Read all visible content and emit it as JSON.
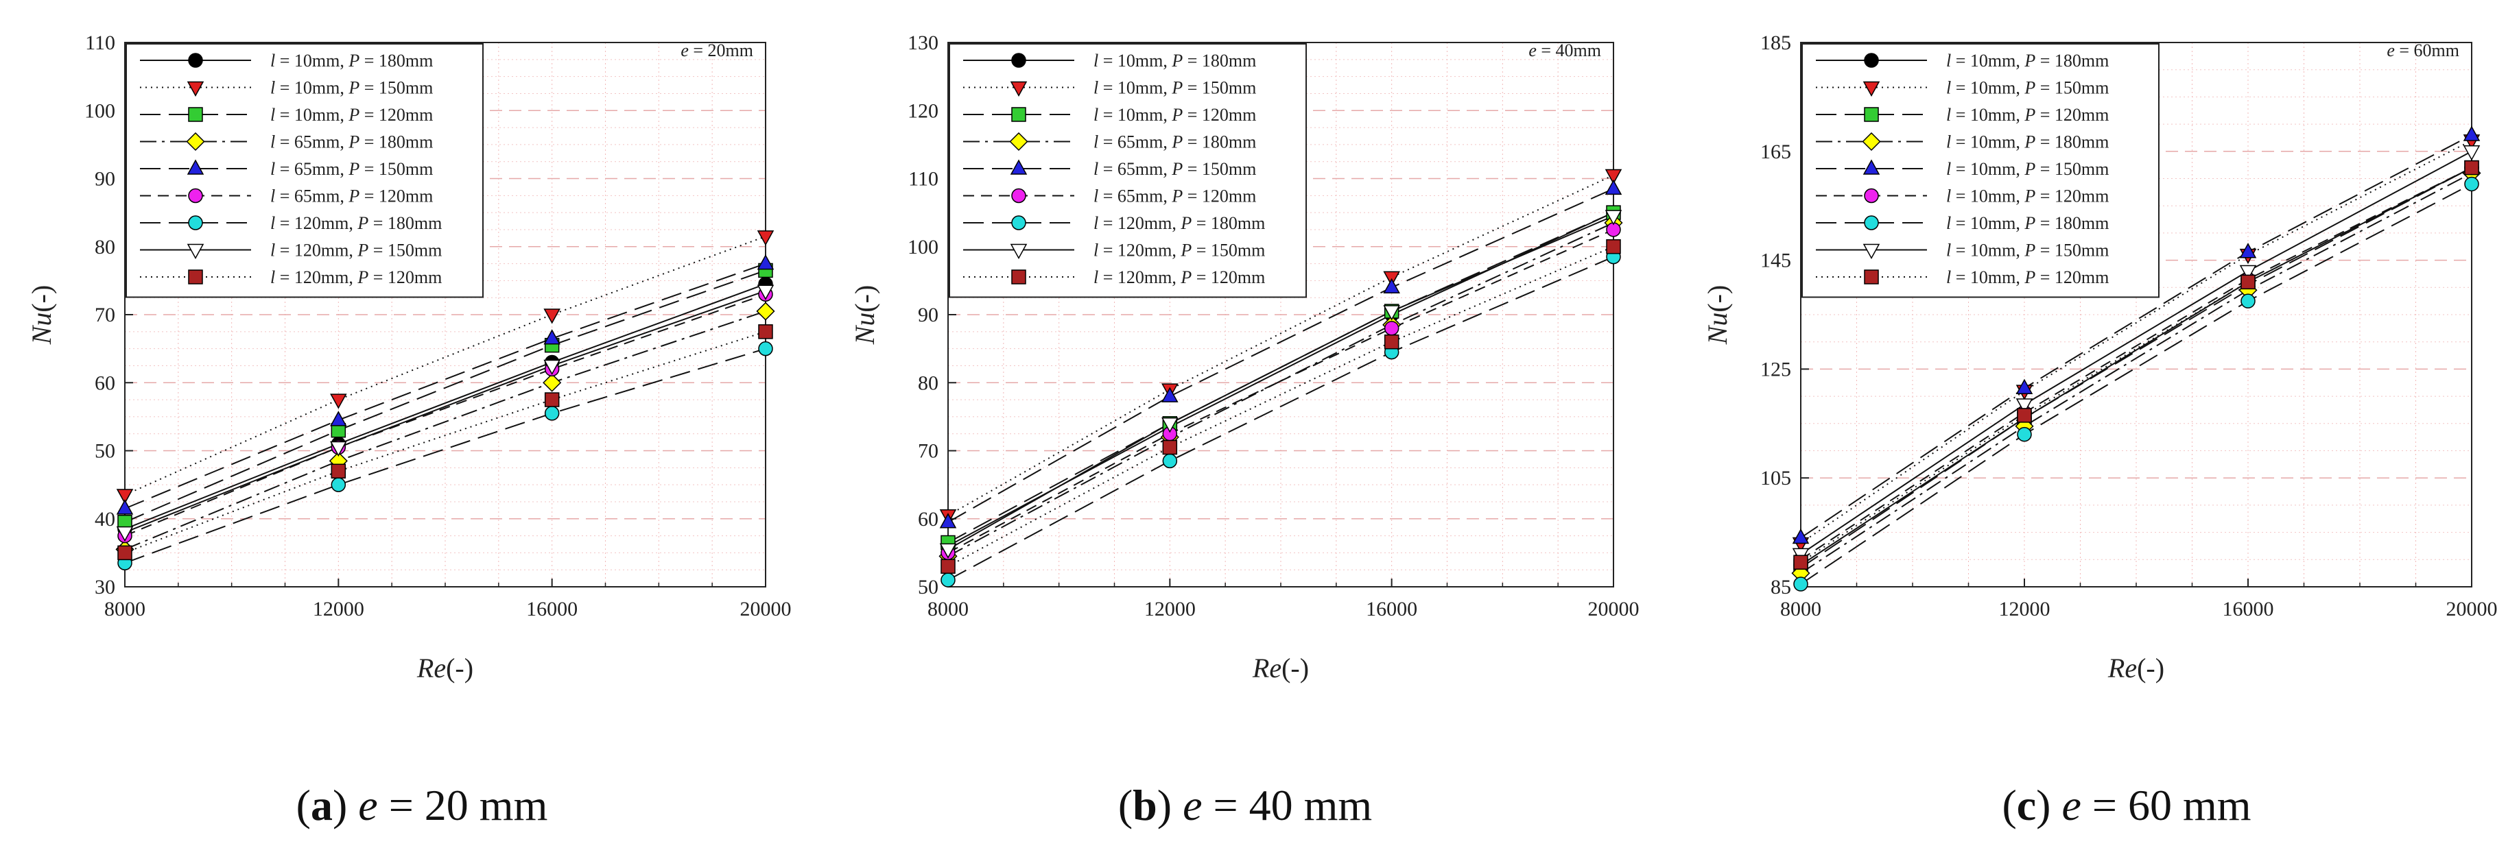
{
  "figure": {
    "panels": [
      {
        "letter": "a",
        "caption": " e = 20 mm",
        "prefix": "(",
        "suffix": ")"
      },
      {
        "letter": "b",
        "caption": " e = 40 mm",
        "prefix": "(",
        "suffix": ")"
      },
      {
        "letter": "c",
        "caption": " e = 60 mm",
        "prefix": "(",
        "suffix": ")"
      }
    ]
  },
  "chart_data": [
    {
      "type": "line",
      "panel": "a",
      "annotation": "e = 20mm",
      "xlabel": "Re(-)",
      "ylabel": "Nu(-)",
      "x": [
        8000,
        12000,
        16000,
        20000
      ],
      "xlim": [
        8000,
        20000
      ],
      "xticks": [
        8000,
        12000,
        16000,
        20000
      ],
      "ylim": [
        30,
        110
      ],
      "yticks": [
        30,
        40,
        50,
        60,
        70,
        80,
        90,
        100,
        110
      ],
      "grid": true,
      "legend_position": "top-left",
      "series": [
        {
          "name": "l = 10mm, P = 180mm",
          "marker": "circle",
          "color": "#000000",
          "dash": "solid",
          "values": [
            38.5,
            51,
            63,
            74.5
          ]
        },
        {
          "name": "l = 10mm, P = 150mm",
          "marker": "triangle-down",
          "color": "#e02020",
          "dash": "dotted",
          "values": [
            43.5,
            57.5,
            70,
            81.5
          ]
        },
        {
          "name": "l = 10mm, P = 120mm",
          "marker": "square",
          "color": "#33cc33",
          "dash": "long-dash",
          "values": [
            39.5,
            53,
            65.5,
            76.5
          ]
        },
        {
          "name": "l = 65mm, P = 180mm",
          "marker": "diamond",
          "color": "#ffff00",
          "dash": "dash-dot",
          "values": [
            35.5,
            48.5,
            60,
            70.5
          ]
        },
        {
          "name": "l = 65mm, P = 150mm",
          "marker": "triangle-up",
          "color": "#2222dd",
          "dash": "long-dash",
          "values": [
            41.5,
            54.5,
            66.5,
            77.5
          ]
        },
        {
          "name": "l = 65mm, P = 120mm",
          "marker": "circle",
          "color": "#ee22ee",
          "dash": "dash",
          "values": [
            37.5,
            50.5,
            62,
            73
          ]
        },
        {
          "name": "l = 120mm, P = 180mm",
          "marker": "circle",
          "color": "#22dddd",
          "dash": "long-dash",
          "values": [
            33.5,
            45,
            55.5,
            65
          ]
        },
        {
          "name": "l = 120mm, P = 150mm",
          "marker": "triangle-down-open",
          "color": "#ffffff",
          "dash": "solid",
          "values": [
            38,
            50.5,
            62.5,
            73.5
          ]
        },
        {
          "name": "l = 120mm, P = 120mm",
          "marker": "square",
          "color": "#aa2222",
          "dash": "dotted",
          "values": [
            35,
            47,
            57.5,
            67.5
          ]
        }
      ]
    },
    {
      "type": "line",
      "panel": "b",
      "annotation": "e = 40mm",
      "xlabel": "Re(-)",
      "ylabel": "Nu(-)",
      "x": [
        8000,
        12000,
        16000,
        20000
      ],
      "xlim": [
        8000,
        20000
      ],
      "xticks": [
        8000,
        12000,
        16000,
        20000
      ],
      "ylim": [
        50,
        130
      ],
      "yticks": [
        50,
        60,
        70,
        80,
        90,
        100,
        110,
        120,
        130
      ],
      "grid": true,
      "legend_position": "top-left",
      "series": [
        {
          "name": "l = 10mm, P = 180mm",
          "marker": "circle",
          "color": "#000000",
          "dash": "solid",
          "values": [
            56,
            73.5,
            90,
            105
          ]
        },
        {
          "name": "l = 10mm, P = 150mm",
          "marker": "triangle-down",
          "color": "#e02020",
          "dash": "dotted",
          "values": [
            60.5,
            79,
            95.5,
            110.5
          ]
        },
        {
          "name": "l = 10mm, P = 120mm",
          "marker": "square",
          "color": "#33cc33",
          "dash": "long-dash",
          "values": [
            56.5,
            74,
            90.5,
            105
          ]
        },
        {
          "name": "l = 65mm, P = 180mm",
          "marker": "diamond",
          "color": "#ffff00",
          "dash": "dash-dot",
          "values": [
            54.5,
            72,
            88.5,
            103.5
          ]
        },
        {
          "name": "l = 65mm, P = 150mm",
          "marker": "triangle-up",
          "color": "#2222dd",
          "dash": "long-dash",
          "values": [
            59.5,
            78,
            94,
            108.5
          ]
        },
        {
          "name": "l = 65mm, P = 120mm",
          "marker": "circle",
          "color": "#ee22ee",
          "dash": "dash",
          "values": [
            55,
            72.5,
            88,
            102.5
          ]
        },
        {
          "name": "l = 120mm, P = 180mm",
          "marker": "circle",
          "color": "#22dddd",
          "dash": "long-dash",
          "values": [
            51,
            68.5,
            84.5,
            98.5
          ]
        },
        {
          "name": "l = 120mm, P = 150mm",
          "marker": "triangle-down-open",
          "color": "#ffffff",
          "dash": "solid",
          "values": [
            55.5,
            74,
            90.5,
            104.5
          ]
        },
        {
          "name": "l = 120mm, P = 120mm",
          "marker": "square",
          "color": "#aa2222",
          "dash": "dotted",
          "values": [
            53,
            70.5,
            86,
            100
          ]
        }
      ]
    },
    {
      "type": "line",
      "panel": "c",
      "annotation": "e = 60mm",
      "xlabel": "Re(-)",
      "ylabel": "Nu(-)",
      "x": [
        8000,
        12000,
        16000,
        20000
      ],
      "xlim": [
        8000,
        20000
      ],
      "xticks": [
        8000,
        12000,
        16000,
        20000
      ],
      "ylim": [
        85,
        185
      ],
      "yticks": [
        85,
        105,
        125,
        145,
        165,
        185
      ],
      "grid": true,
      "legend_position": "top-left",
      "series": [
        {
          "name": "l = 10mm, P = 180mm",
          "marker": "circle",
          "color": "#000000",
          "dash": "solid",
          "values": [
            89,
            116,
            141,
            162
          ]
        },
        {
          "name": "l = 10mm, P = 150mm",
          "marker": "triangle-down",
          "color": "#e02020",
          "dash": "dotted",
          "values": [
            93,
            121,
            146,
            167
          ]
        },
        {
          "name": "l = 10mm, P = 120mm",
          "marker": "square",
          "color": "#33cc33",
          "dash": "long-dash",
          "values": [
            88.5,
            116,
            140.5,
            162
          ]
        },
        {
          "name": "l = 10mm, P = 180mm",
          "marker": "diamond",
          "color": "#ffff00",
          "dash": "dash-dot",
          "values": [
            87.5,
            114.5,
            139.5,
            161
          ]
        },
        {
          "name": "l = 10mm, P = 150mm",
          "marker": "triangle-up",
          "color": "#2222dd",
          "dash": "long-dash",
          "values": [
            94,
            121.5,
            146.5,
            168
          ]
        },
        {
          "name": "l = 10mm, P = 120mm",
          "marker": "circle",
          "color": "#ee22ee",
          "dash": "dash",
          "values": [
            90,
            117,
            141.5,
            162
          ]
        },
        {
          "name": "l = 10mm, P = 180mm",
          "marker": "circle",
          "color": "#22dddd",
          "dash": "long-dash",
          "values": [
            85.5,
            113,
            137.5,
            159
          ]
        },
        {
          "name": "l = 10mm, P = 150mm",
          "marker": "triangle-down-open",
          "color": "#ffffff",
          "dash": "solid",
          "values": [
            91,
            118.5,
            143,
            165
          ]
        },
        {
          "name": "l = 10mm, P = 120mm",
          "marker": "square",
          "color": "#aa2222",
          "dash": "dotted",
          "values": [
            89.5,
            116.5,
            141,
            162
          ]
        }
      ]
    }
  ]
}
